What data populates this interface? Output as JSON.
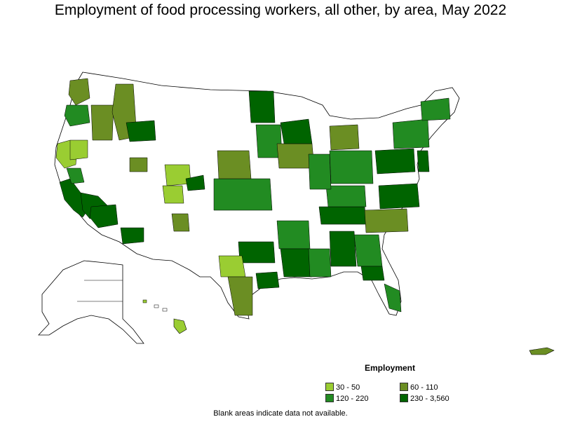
{
  "title": "Employment of food processing workers, all other, by area, May 2022",
  "legend": {
    "title": "Employment",
    "items": [
      {
        "label": "30 - 50",
        "color": "#9acd32"
      },
      {
        "label": "60 - 110",
        "color": "#6b8e23"
      },
      {
        "label": "120 - 220",
        "color": "#228b22"
      },
      {
        "label": "230 - 3,560",
        "color": "#006400"
      }
    ]
  },
  "footnote": "Blank areas indicate data not available.",
  "map_colors": {
    "blank": "#ffffff",
    "border": "#000000"
  }
}
